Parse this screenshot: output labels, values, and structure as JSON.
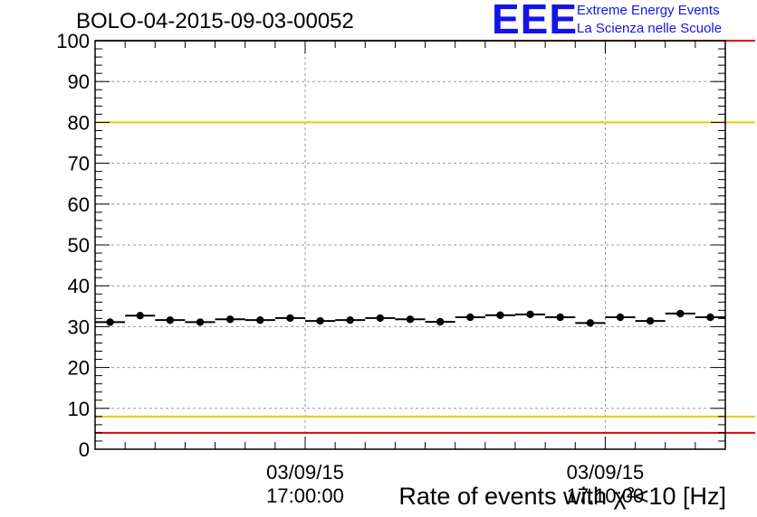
{
  "title": "BOLO-04-2015-09-03-00052",
  "logo": {
    "mark": "EEE",
    "line1": "Extreme Energy Events",
    "line2": "La Scienza nelle Scuole",
    "color": "#1414e6"
  },
  "chart_data": {
    "type": "scatter",
    "title": "BOLO-04-2015-09-03-00052",
    "xlabel": "Rate of events with χ²<10 [Hz]",
    "ylabel": "",
    "ylim": [
      0,
      100
    ],
    "yticks": [
      0,
      10,
      20,
      30,
      40,
      50,
      60,
      70,
      80,
      90,
      100
    ],
    "xticks": [
      {
        "date": "03/09/15",
        "time": "17:00:00",
        "pos": 7
      },
      {
        "date": "03/09/15",
        "time": "17:10:00",
        "pos": 17
      }
    ],
    "grid": true,
    "reference_lines": [
      {
        "value": 100,
        "color": "#e60000"
      },
      {
        "value": 80,
        "color": "#f0c800"
      },
      {
        "value": 8,
        "color": "#f0c800"
      },
      {
        "value": 4,
        "color": "#e60000"
      }
    ],
    "points": [
      31.1,
      32.7,
      31.6,
      31.1,
      31.8,
      31.6,
      32.1,
      31.4,
      31.6,
      32.1,
      31.8,
      31.2,
      32.3,
      32.8,
      33.0,
      32.3,
      30.9,
      32.3,
      31.4,
      33.2,
      32.3
    ]
  }
}
